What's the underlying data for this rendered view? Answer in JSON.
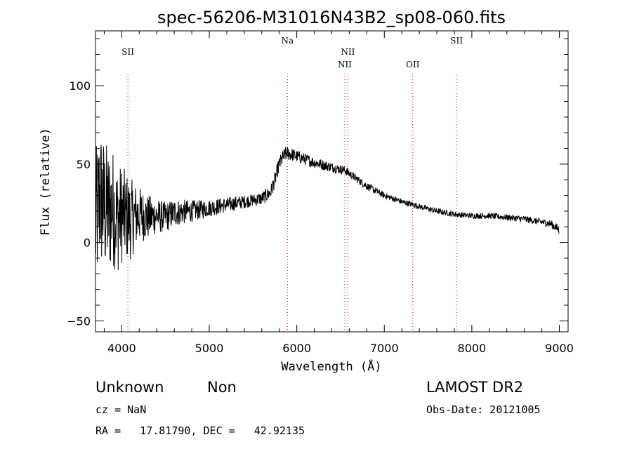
{
  "chart_data": {
    "type": "line",
    "title": "spec-56206-M31016N43B2_sp08-060.fits",
    "xlabel": "Wavelength (Å)",
    "ylabel": "Flux (relative)",
    "xlim": [
      3700,
      9100
    ],
    "ylim": [
      -57,
      135
    ],
    "x_ticks": [
      4000,
      5000,
      6000,
      7000,
      8000,
      9000
    ],
    "y_ticks": [
      -50,
      0,
      50,
      100
    ],
    "grid": false,
    "line_color": "#000000",
    "marker_color": "#cc0000",
    "spectral_lines": [
      {
        "name": "SII",
        "wavelength": 4070,
        "row": 1
      },
      {
        "name": "Na",
        "wavelength": 5893,
        "row": 0
      },
      {
        "name": "NII",
        "wavelength": 6548,
        "row": 2
      },
      {
        "name": "NII",
        "wavelength": 6584,
        "row": 1
      },
      {
        "name": "OII",
        "wavelength": 7325,
        "row": 2
      },
      {
        "name": "SII",
        "wavelength": 7825,
        "row": 0
      }
    ],
    "spectrum_anchor": {
      "x": [
        3700,
        3750,
        3800,
        3850,
        3900,
        3950,
        4000,
        4100,
        4200,
        4300,
        4400,
        4500,
        4600,
        4800,
        5000,
        5200,
        5400,
        5600,
        5700,
        5750,
        5800,
        5850,
        5880,
        5950,
        6050,
        6200,
        6400,
        6550,
        6600,
        6700,
        6800,
        7000,
        7200,
        7400,
        7600,
        7800,
        8000,
        8200,
        8400,
        8600,
        8800,
        8900,
        9000
      ],
      "y": [
        10,
        30,
        22,
        20,
        22,
        15,
        18,
        15,
        18,
        16,
        17,
        16,
        19,
        20,
        22,
        24,
        26,
        28,
        32,
        40,
        50,
        55,
        57,
        56,
        54,
        51,
        48,
        46,
        44,
        40,
        36,
        30,
        26,
        23,
        20,
        18,
        17,
        17,
        16,
        15,
        13,
        12,
        8
      ]
    },
    "noise_amplitude": {
      "x": [
        3700,
        3800,
        3900,
        4000,
        4100,
        4200,
        4400,
        4600,
        4800,
        5000,
        5500,
        5800,
        6000,
        6500,
        7000,
        8000,
        8800,
        9000
      ],
      "y": [
        48,
        45,
        38,
        32,
        26,
        18,
        11,
        9,
        7,
        5.5,
        4,
        5,
        4,
        3,
        2,
        1.8,
        2.2,
        3
      ]
    }
  },
  "footer": {
    "object_class": "Unknown",
    "subclass": "Non",
    "survey": "LAMOST DR2",
    "redshift": "cz = NaN",
    "obs_date": "Obs-Date: 20121005",
    "coords": "RA =   17.81790, DEC =   42.92135"
  }
}
